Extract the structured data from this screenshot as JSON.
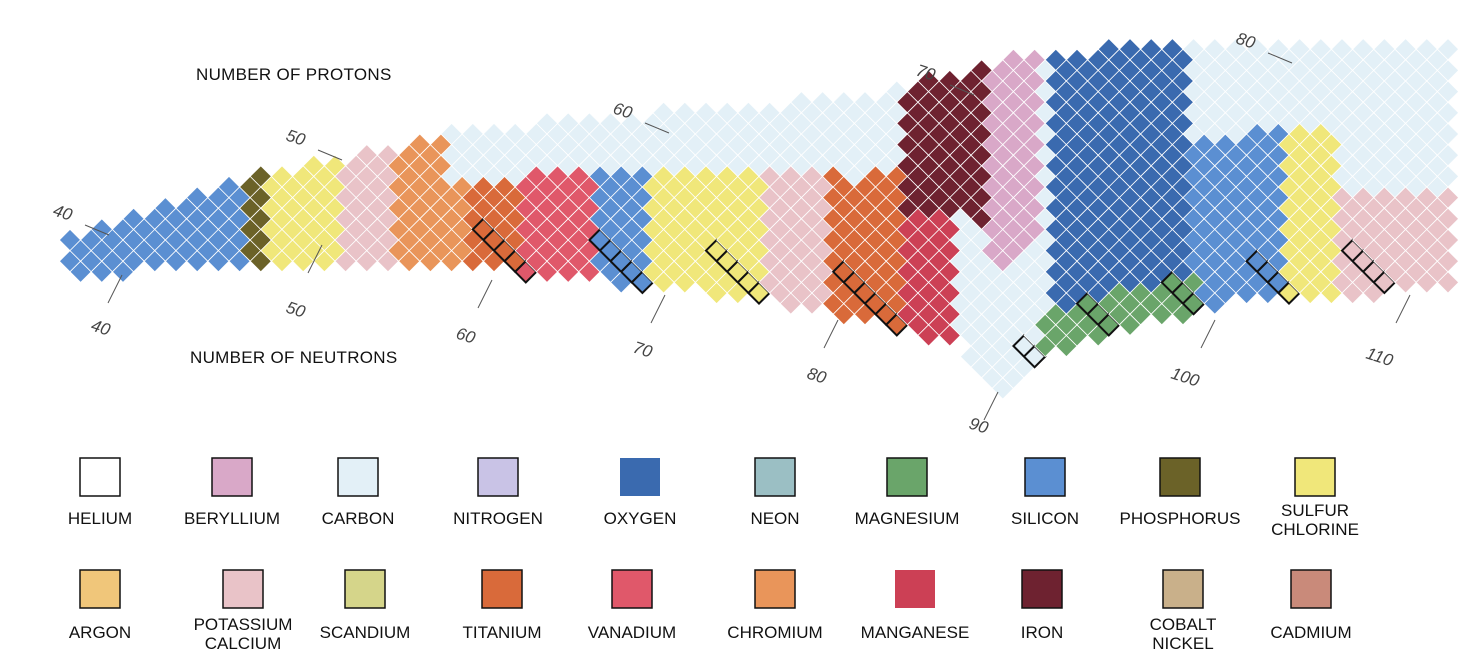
{
  "axis_labels": {
    "protons": "NUMBER OF PROTONS",
    "neutrons": "NUMBER OF NEUTRONS"
  },
  "proton_ticks": [
    "40",
    "50",
    "60",
    "70",
    "80"
  ],
  "neutron_ticks": [
    "40",
    "50",
    "60",
    "70",
    "80",
    "90",
    "100",
    "110"
  ],
  "legend": [
    {
      "label": [
        "HELIUM"
      ],
      "color": "#ffffff"
    },
    {
      "label": [
        "BERYLLIUM"
      ],
      "color": "#d9a8c8"
    },
    {
      "label": [
        "CARBON"
      ],
      "color": "#e3f0f7"
    },
    {
      "label": [
        "NITROGEN"
      ],
      "color": "#c9c3e6"
    },
    {
      "label": [
        "OXYGEN"
      ],
      "color": "#3a6aaf"
    },
    {
      "label": [
        "NEON"
      ],
      "color": "#9bbfc4"
    },
    {
      "label": [
        "MAGNESIUM"
      ],
      "color": "#6aa56a"
    },
    {
      "label": [
        "SILICON"
      ],
      "color": "#5b8fd2"
    },
    {
      "label": [
        "PHOSPHORUS"
      ],
      "color": "#6b6228"
    },
    {
      "label": [
        "SULFUR",
        "CHLORINE"
      ],
      "color": "#f0e77a"
    },
    {
      "label": [
        "ARGON"
      ],
      "color": "#f0c67a"
    },
    {
      "label": [
        "POTASSIUM",
        "CALCIUM"
      ],
      "color": "#e9c3c8"
    },
    {
      "label": [
        "SCANDIUM"
      ],
      "color": "#d5d58a"
    },
    {
      "label": [
        "TITANIUM"
      ],
      "color": "#d96a3a"
    },
    {
      "label": [
        "VANADIUM"
      ],
      "color": "#e0586a"
    },
    {
      "label": [
        "CHROMIUM"
      ],
      "color": "#e9955a"
    },
    {
      "label": [
        "MANGANESE"
      ],
      "color": "#cc4055"
    },
    {
      "label": [
        "IRON"
      ],
      "color": "#6e2230"
    },
    {
      "label": [
        "COBALT",
        "NICKEL"
      ],
      "color": "#c9b08a"
    },
    {
      "label": [
        "CADMIUM"
      ],
      "color": "#c98a7a"
    }
  ]
}
